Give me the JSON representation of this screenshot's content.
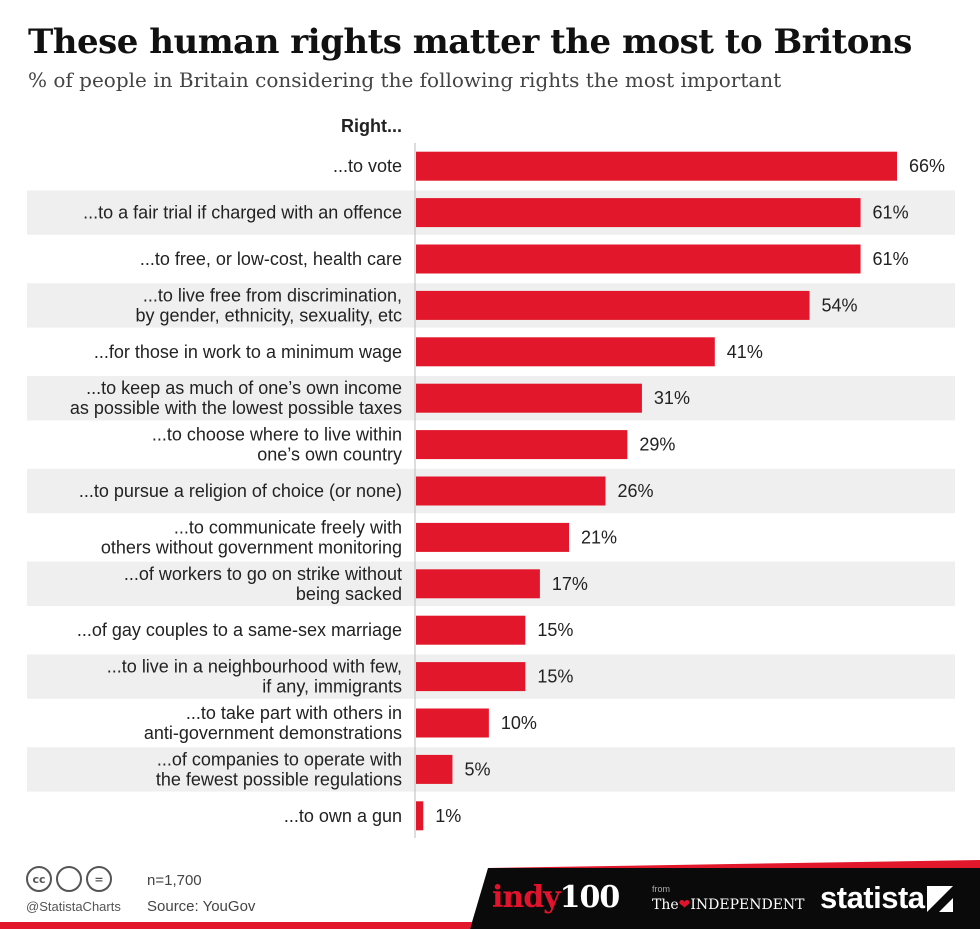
{
  "title": "These human rights matter the most to Britons",
  "subtitle": "% of people in Britain considering the following rights the most important",
  "chart_data": {
    "type": "bar",
    "orientation": "horizontal",
    "category_header": "Right...",
    "categories": [
      [
        "...to vote"
      ],
      [
        "...to a fair trial if charged with an offence"
      ],
      [
        "...to free, or low-cost, health care"
      ],
      [
        "...to live free from discrimination,",
        "by gender, ethnicity, sexuality, etc"
      ],
      [
        "...for those in work to a minimum wage"
      ],
      [
        "...to keep as much of one’s own income",
        "as possible with the lowest possible taxes"
      ],
      [
        "...to choose where to live within",
        "one’s own country"
      ],
      [
        "...to pursue a religion of choice (or none)"
      ],
      [
        "...to communicate freely with",
        "others without government monitoring"
      ],
      [
        "...of workers to go on strike without",
        "being sacked"
      ],
      [
        "...of gay couples to a same-sex marriage"
      ],
      [
        "...to live in a neighbourhood with few,",
        "if any, immigrants"
      ],
      [
        "...to take part with others in",
        "anti-government demonstrations"
      ],
      [
        "...of companies to operate with",
        "the fewest possible regulations"
      ],
      [
        "...to own a gun"
      ]
    ],
    "values": [
      66,
      61,
      61,
      54,
      41,
      31,
      29,
      26,
      21,
      17,
      15,
      15,
      10,
      5,
      1
    ],
    "value_labels": [
      "66%",
      "61%",
      "61%",
      "54%",
      "41%",
      "31%",
      "29%",
      "26%",
      "21%",
      "17%",
      "15%",
      "15%",
      "10%",
      "5%",
      "1%"
    ],
    "xlim": [
      0,
      66
    ],
    "bar_color": "#e2172b",
    "stripe_color": "#efefef",
    "grid": false
  },
  "footer": {
    "cc_icons": [
      "creative-commons-icon",
      "attribution-icon",
      "no-derivatives-icon"
    ],
    "cc_glyphs": [
      "cc",
      " ",
      "="
    ],
    "handle": "@StatistaCharts",
    "sample_note": "n=1,700",
    "source": "Source: YouGov",
    "indy_word": "indy",
    "indy_num": "100",
    "from": "from",
    "independent_the": "The",
    "independent_name": "INDEPENDENT",
    "statista": "statista"
  }
}
